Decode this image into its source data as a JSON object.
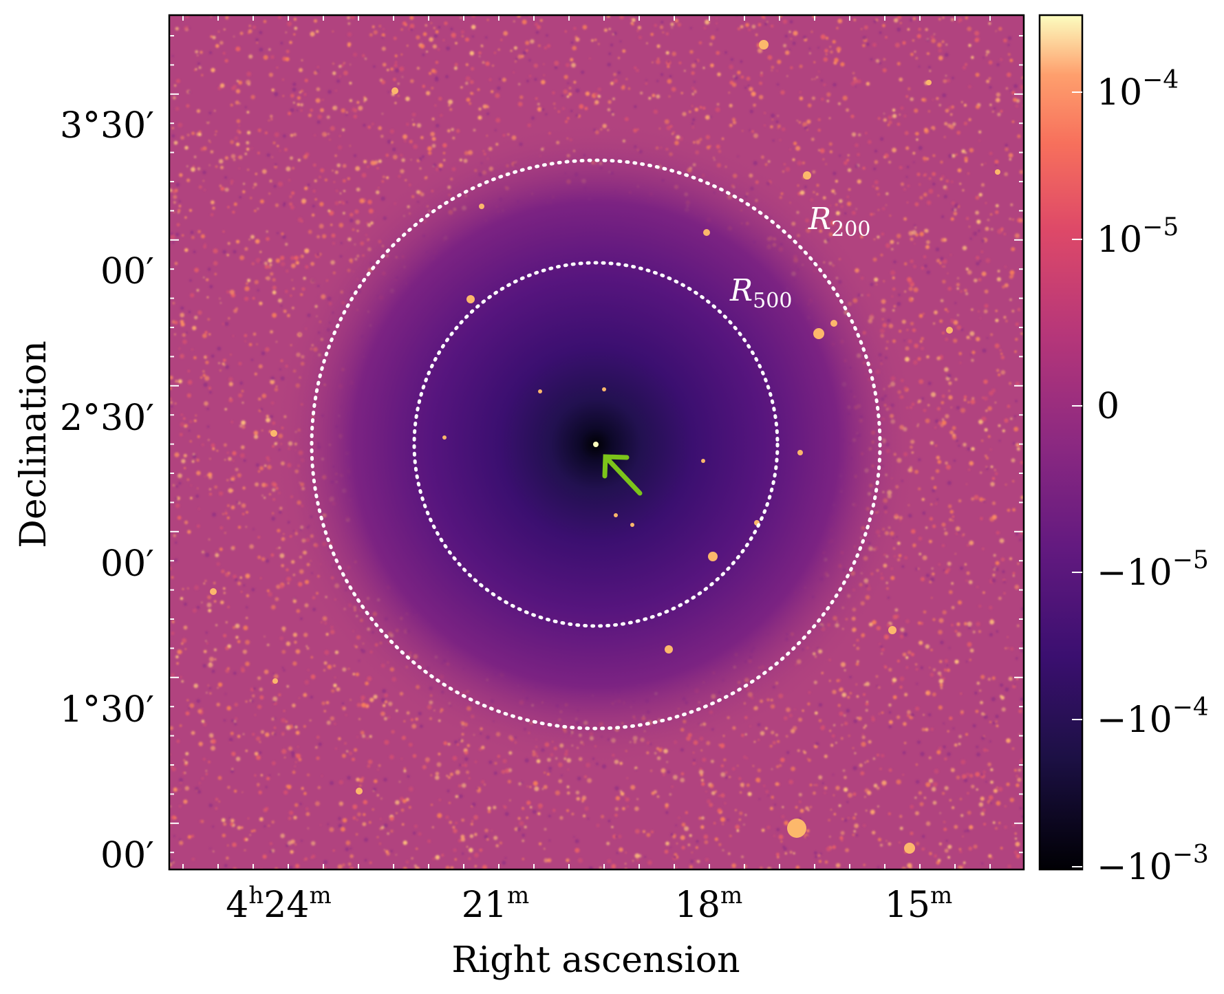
{
  "chart_data": {
    "type": "heatmap",
    "title": "",
    "xlabel": "Right ascension",
    "ylabel": "Declination",
    "colormap": "magma",
    "x_ticks": [
      {
        "base": "4",
        "sup1": "h",
        "mid": "24",
        "sup2": "m"
      },
      {
        "base": "",
        "sup1": "",
        "mid": "21",
        "sup2": "m"
      },
      {
        "base": "",
        "sup1": "",
        "mid": "18",
        "sup2": "m"
      },
      {
        "base": "",
        "sup1": "",
        "mid": "15",
        "sup2": "m"
      }
    ],
    "y_ticks": [
      {
        "deg": "3°",
        "min": "30′"
      },
      {
        "deg": "",
        "min": "00′"
      },
      {
        "deg": "2°",
        "min": "30′"
      },
      {
        "deg": "",
        "min": "00′"
      },
      {
        "deg": "1°",
        "min": "30′"
      },
      {
        "deg": "",
        "min": "00′"
      }
    ],
    "colorbar": {
      "scale": "symlog",
      "ticks": [
        {
          "sign": "",
          "base": "10",
          "exp": "−4",
          "value": 0.0001
        },
        {
          "sign": "",
          "base": "10",
          "exp": "−5",
          "value": 1e-05
        },
        {
          "sign": "",
          "base": "0",
          "exp": "",
          "value": 0
        },
        {
          "sign": "−",
          "base": "10",
          "exp": "−5",
          "value": -1e-05
        },
        {
          "sign": "−",
          "base": "10",
          "exp": "−4",
          "value": -0.0001
        },
        {
          "sign": "−",
          "base": "10",
          "exp": "−3",
          "value": -0.001
        }
      ],
      "range": [
        -0.001,
        0.0003
      ]
    },
    "overlays": [
      {
        "kind": "circle",
        "style": "dotted",
        "color": "#ffffff",
        "label_main": "R",
        "label_sub": "500"
      },
      {
        "kind": "circle",
        "style": "dotted",
        "color": "#ffffff",
        "label_main": "R",
        "label_sub": "200"
      },
      {
        "kind": "arrow",
        "color": "#7cc41a",
        "points_to": "central source"
      }
    ],
    "colors": {
      "background": "#b1437f",
      "inner": "#3a1566",
      "center": "#05030f",
      "source": "#fcb86b",
      "grid_tick": "#ffffff"
    }
  }
}
